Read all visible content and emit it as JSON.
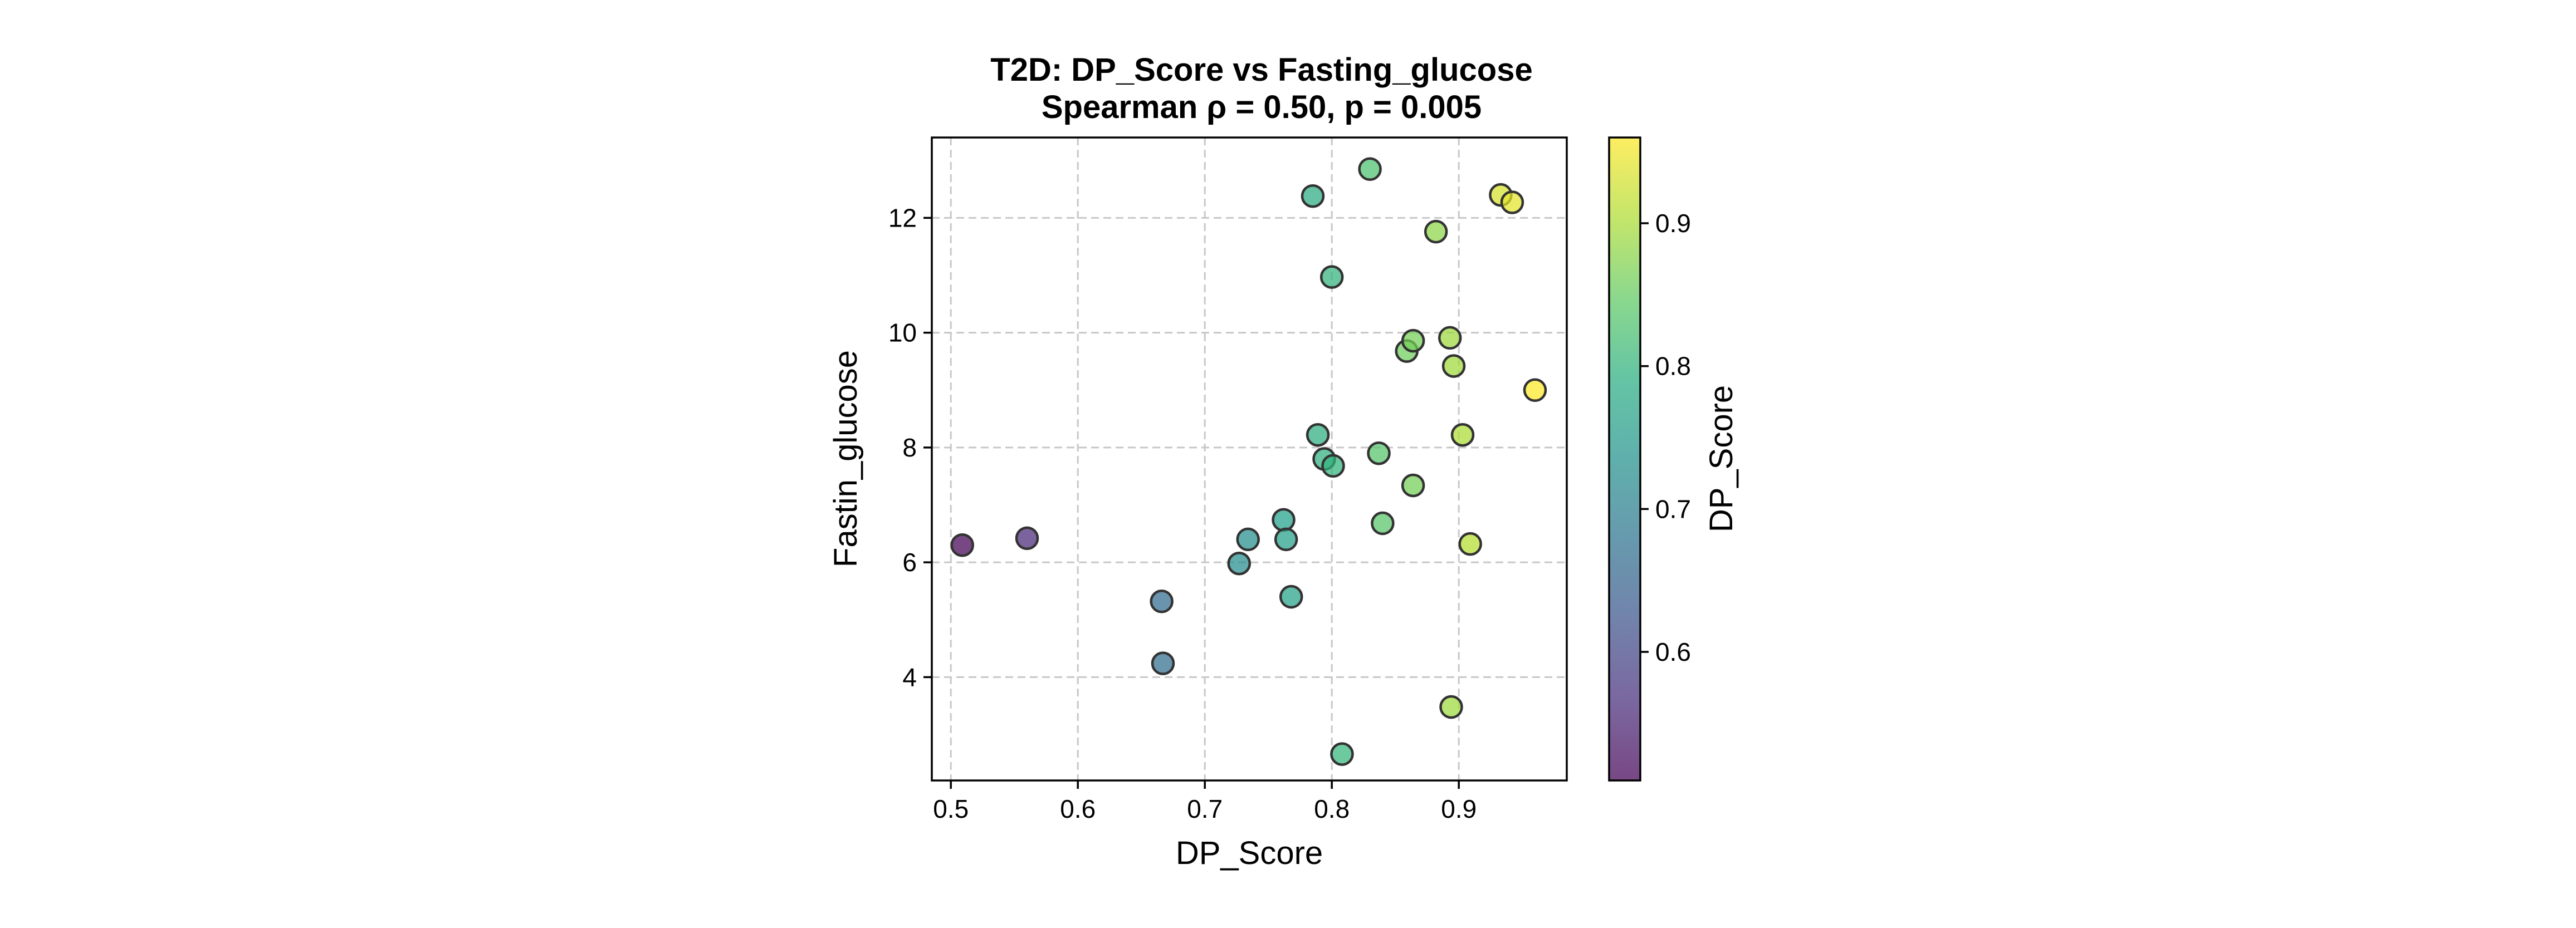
{
  "chart_data": {
    "type": "scatter",
    "title": "T2D: DP_Score vs Fasting_glucose",
    "subtitle": "Spearman ρ = 0.50, p = 0.005",
    "xlabel": "DP_Score",
    "ylabel": "Fastin_glucose",
    "xlim": [
      0.485,
      0.985
    ],
    "ylim": [
      2.2,
      13.4
    ],
    "xticks": [
      0.5,
      0.6,
      0.7,
      0.8,
      0.9
    ],
    "xtick_labels": [
      "0.5",
      "0.6",
      "0.7",
      "0.8",
      "0.9"
    ],
    "yticks": [
      4,
      6,
      8,
      10,
      12
    ],
    "ytick_labels": [
      "4",
      "6",
      "8",
      "10",
      "12"
    ],
    "grid": true,
    "colormap": "viridis",
    "colorbar": {
      "label": "DP_Score",
      "range": [
        0.51,
        0.96
      ],
      "ticks": [
        0.6,
        0.7,
        0.8,
        0.9
      ],
      "tick_labels": [
        "0.6",
        "0.7",
        "0.8",
        "0.9"
      ]
    },
    "points": [
      {
        "x": 0.509,
        "y": 6.3
      },
      {
        "x": 0.56,
        "y": 6.42
      },
      {
        "x": 0.666,
        "y": 5.32
      },
      {
        "x": 0.667,
        "y": 4.24
      },
      {
        "x": 0.727,
        "y": 5.98
      },
      {
        "x": 0.734,
        "y": 6.4
      },
      {
        "x": 0.762,
        "y": 6.74
      },
      {
        "x": 0.764,
        "y": 6.4
      },
      {
        "x": 0.768,
        "y": 5.4
      },
      {
        "x": 0.785,
        "y": 12.38
      },
      {
        "x": 0.789,
        "y": 8.22
      },
      {
        "x": 0.794,
        "y": 7.8
      },
      {
        "x": 0.8,
        "y": 10.97
      },
      {
        "x": 0.801,
        "y": 7.68
      },
      {
        "x": 0.808,
        "y": 2.66
      },
      {
        "x": 0.83,
        "y": 12.85
      },
      {
        "x": 0.837,
        "y": 7.9
      },
      {
        "x": 0.84,
        "y": 6.68
      },
      {
        "x": 0.859,
        "y": 9.68
      },
      {
        "x": 0.864,
        "y": 9.86
      },
      {
        "x": 0.864,
        "y": 7.34
      },
      {
        "x": 0.882,
        "y": 11.76
      },
      {
        "x": 0.893,
        "y": 9.91
      },
      {
        "x": 0.894,
        "y": 3.48
      },
      {
        "x": 0.896,
        "y": 9.42
      },
      {
        "x": 0.903,
        "y": 8.22
      },
      {
        "x": 0.909,
        "y": 6.32
      },
      {
        "x": 0.933,
        "y": 12.4
      },
      {
        "x": 0.942,
        "y": 12.27
      },
      {
        "x": 0.96,
        "y": 9.0
      }
    ]
  }
}
